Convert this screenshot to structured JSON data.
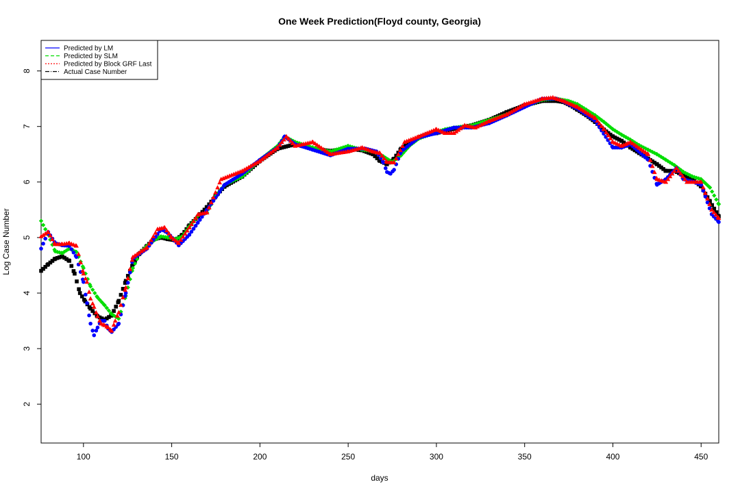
{
  "chart_data": {
    "type": "scatter",
    "title": "One Week Prediction(Floyd county, Georgia)",
    "xlabel": "days",
    "ylabel": "Log Case Number",
    "xlim": [
      76,
      460
    ],
    "ylim": [
      1.3,
      8.55
    ],
    "x_ticks": [
      100,
      150,
      200,
      250,
      300,
      350,
      400,
      450
    ],
    "y_ticks": [
      2,
      3,
      4,
      5,
      6,
      7,
      8
    ],
    "grid": false,
    "legend_position": "top-left",
    "legend": [
      {
        "label": "Predicted by LM",
        "color": "#0000ff",
        "line": "solid"
      },
      {
        "label": "Predicted by SLM",
        "color": "#00dd00",
        "line": "dashed"
      },
      {
        "label": "Predicted by Block GRF Last",
        "color": "#ff0000",
        "line": "dotted"
      },
      {
        "label": "Actual Case Number",
        "color": "#000000",
        "line": "dashdot"
      }
    ],
    "series": [
      {
        "name": "Actual Case Number",
        "color": "#000000",
        "marker": "square",
        "x": [
          76,
          80,
          84,
          88,
          92,
          95,
          98,
          101,
          104,
          108,
          112,
          116,
          120,
          124,
          128,
          132,
          136,
          140,
          144,
          148,
          152,
          156,
          160,
          165,
          170,
          175,
          180,
          190,
          200,
          210,
          220,
          230,
          240,
          250,
          258,
          264,
          268,
          272,
          276,
          280,
          285,
          290,
          295,
          300,
          305,
          310,
          320,
          330,
          340,
          350,
          360,
          368,
          372,
          376,
          380,
          385,
          390,
          395,
          400,
          405,
          410,
          415,
          420,
          425,
          430,
          435,
          440,
          445,
          450,
          455,
          460
        ],
        "y": [
          4.4,
          4.52,
          4.62,
          4.66,
          4.58,
          4.35,
          4.0,
          3.85,
          3.72,
          3.58,
          3.52,
          3.6,
          3.86,
          4.22,
          4.52,
          4.72,
          4.85,
          4.97,
          5.0,
          4.97,
          4.95,
          5.05,
          5.22,
          5.38,
          5.55,
          5.75,
          5.92,
          6.1,
          6.38,
          6.6,
          6.68,
          6.6,
          6.56,
          6.6,
          6.57,
          6.5,
          6.38,
          6.32,
          6.42,
          6.6,
          6.72,
          6.8,
          6.86,
          6.88,
          6.92,
          6.96,
          7.02,
          7.12,
          7.26,
          7.38,
          7.46,
          7.46,
          7.44,
          7.38,
          7.3,
          7.2,
          7.08,
          6.94,
          6.82,
          6.74,
          6.62,
          6.52,
          6.42,
          6.32,
          6.2,
          6.2,
          6.12,
          6.05,
          5.92,
          5.65,
          5.38
        ]
      },
      {
        "name": "Predicted by SLM",
        "color": "#00dd00",
        "marker": "diamond",
        "x": [
          76,
          80,
          84,
          88,
          92,
          96,
          100,
          104,
          108,
          112,
          116,
          120,
          124,
          128,
          132,
          136,
          140,
          144,
          148,
          152,
          156,
          160,
          165,
          170,
          175,
          180,
          190,
          200,
          210,
          214,
          220,
          230,
          240,
          250,
          258,
          265,
          270,
          275,
          280,
          285,
          290,
          300,
          305,
          310,
          320,
          330,
          340,
          350,
          360,
          368,
          375,
          380,
          385,
          390,
          395,
          400,
          405,
          410,
          415,
          420,
          425,
          430,
          435,
          440,
          445,
          450,
          455,
          460
        ],
        "y": [
          5.3,
          5.05,
          4.75,
          4.72,
          4.8,
          4.74,
          4.45,
          4.12,
          3.92,
          3.78,
          3.62,
          3.54,
          3.95,
          4.45,
          4.72,
          4.85,
          4.95,
          5.02,
          5.0,
          4.97,
          5.02,
          5.2,
          5.4,
          5.45,
          5.75,
          5.95,
          6.1,
          6.4,
          6.65,
          6.82,
          6.72,
          6.62,
          6.55,
          6.65,
          6.58,
          6.55,
          6.46,
          6.36,
          6.48,
          6.66,
          6.78,
          6.9,
          6.95,
          6.98,
          7.02,
          7.12,
          7.22,
          7.36,
          7.48,
          7.5,
          7.46,
          7.4,
          7.3,
          7.2,
          7.08,
          6.95,
          6.85,
          6.76,
          6.66,
          6.58,
          6.5,
          6.4,
          6.3,
          6.18,
          6.1,
          6.05,
          5.9,
          5.6
        ]
      },
      {
        "name": "Predicted by LM",
        "color": "#0000ff",
        "marker": "circle",
        "x": [
          76,
          80,
          84,
          88,
          92,
          96,
          100,
          102,
          104,
          106,
          108,
          110,
          112,
          114,
          116,
          120,
          124,
          128,
          136,
          144,
          148,
          154,
          160,
          170,
          180,
          190,
          200,
          210,
          214,
          220,
          230,
          240,
          250,
          260,
          266,
          270,
          272,
          274,
          276,
          280,
          290,
          300,
          310,
          320,
          330,
          340,
          350,
          360,
          368,
          372,
          380,
          390,
          400,
          405,
          410,
          420,
          425,
          430,
          436,
          440,
          446,
          450,
          456,
          460
        ],
        "y": [
          4.8,
          5.1,
          4.9,
          4.86,
          4.85,
          4.65,
          4.2,
          3.82,
          3.45,
          3.24,
          3.38,
          3.5,
          3.5,
          3.36,
          3.3,
          3.45,
          4.0,
          4.62,
          4.8,
          5.15,
          5.08,
          4.86,
          5.05,
          5.5,
          5.95,
          6.15,
          6.4,
          6.62,
          6.82,
          6.68,
          6.58,
          6.48,
          6.6,
          6.6,
          6.55,
          6.35,
          6.18,
          6.15,
          6.22,
          6.55,
          6.8,
          6.88,
          6.98,
          6.98,
          7.06,
          7.2,
          7.35,
          7.5,
          7.5,
          7.45,
          7.32,
          7.1,
          6.62,
          6.62,
          6.68,
          6.4,
          5.95,
          6.05,
          6.25,
          6.05,
          6.0,
          5.95,
          5.42,
          5.28
        ]
      },
      {
        "name": "Predicted by Block GRF Last",
        "color": "#ff0000",
        "marker": "triangle",
        "x": [
          76,
          80,
          84,
          88,
          92,
          96,
          100,
          102,
          104,
          106,
          108,
          110,
          112,
          114,
          116,
          118,
          120,
          124,
          128,
          136,
          142,
          146,
          150,
          154,
          160,
          165,
          170,
          178,
          190,
          200,
          210,
          215,
          220,
          230,
          240,
          250,
          258,
          264,
          268,
          272,
          276,
          282,
          290,
          300,
          305,
          310,
          316,
          322,
          330,
          340,
          350,
          360,
          366,
          372,
          380,
          390,
          395,
          400,
          405,
          410,
          420,
          425,
          430,
          436,
          442,
          450,
          456,
          460
        ],
        "y": [
          5.02,
          5.1,
          4.88,
          4.88,
          4.9,
          4.85,
          4.35,
          4.2,
          3.9,
          3.75,
          3.58,
          3.45,
          3.42,
          3.38,
          3.32,
          3.5,
          3.65,
          4.1,
          4.65,
          4.82,
          5.15,
          5.18,
          5.0,
          4.9,
          5.18,
          5.42,
          5.45,
          6.05,
          6.2,
          6.38,
          6.62,
          6.82,
          6.65,
          6.72,
          6.5,
          6.55,
          6.62,
          6.55,
          6.52,
          6.36,
          6.35,
          6.72,
          6.82,
          6.95,
          6.88,
          6.88,
          7.02,
          6.98,
          7.1,
          7.22,
          7.4,
          7.5,
          7.52,
          7.46,
          7.35,
          7.15,
          6.95,
          6.72,
          6.65,
          6.72,
          6.5,
          6.05,
          6.0,
          6.25,
          6.0,
          6.0,
          5.5,
          5.35
        ]
      }
    ]
  }
}
